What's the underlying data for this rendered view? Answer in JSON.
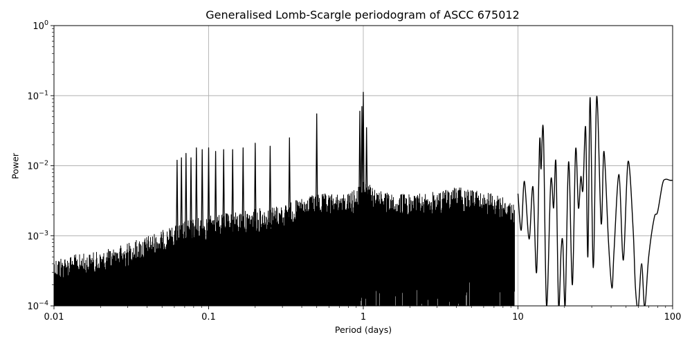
{
  "chart_data": {
    "type": "line",
    "title": "Generalised Lomb-Scargle periodogram of ASCC 675012",
    "xlabel": "Period (days)",
    "ylabel": "Power",
    "xscale": "log",
    "yscale": "log",
    "xlim": [
      0.01,
      100
    ],
    "ylim": [
      0.0001,
      1
    ],
    "grid": true,
    "legend": null,
    "xticks": [
      0.01,
      0.1,
      1,
      10,
      100
    ],
    "xtick_labels": [
      "0.01",
      "0.1",
      "1",
      "10",
      "100"
    ],
    "yticks": [
      0.0001,
      0.001,
      0.01,
      0.1,
      1
    ],
    "ytick_labels": [
      {
        "base": "10",
        "exp": "−4"
      },
      {
        "base": "10",
        "exp": "−3"
      },
      {
        "base": "10",
        "exp": "−2"
      },
      {
        "base": "10",
        "exp": "−1"
      },
      {
        "base": "10",
        "exp": "0"
      }
    ],
    "line_color": "#000000",
    "grid_color": "#b0b0b0",
    "noise_envelope": [
      {
        "period": 0.01,
        "power": 0.0005
      },
      {
        "period": 0.02,
        "power": 0.0006
      },
      {
        "period": 0.03,
        "power": 0.0008
      },
      {
        "period": 0.05,
        "power": 0.0012
      },
      {
        "period": 0.08,
        "power": 0.0018
      },
      {
        "period": 0.15,
        "power": 0.0022
      },
      {
        "period": 0.3,
        "power": 0.0028
      },
      {
        "period": 0.5,
        "power": 0.004
      },
      {
        "period": 0.8,
        "power": 0.004
      },
      {
        "period": 1.0,
        "power": 0.006
      },
      {
        "period": 1.5,
        "power": 0.004
      },
      {
        "period": 2.5,
        "power": 0.004
      },
      {
        "period": 4.0,
        "power": 0.005
      },
      {
        "period": 7.0,
        "power": 0.004
      },
      {
        "period": 9.5,
        "power": 0.003
      }
    ],
    "alias_peaks": [
      {
        "period": 0.0625,
        "power": 0.012
      },
      {
        "period": 0.0667,
        "power": 0.013
      },
      {
        "period": 0.0714,
        "power": 0.015
      },
      {
        "period": 0.0769,
        "power": 0.013
      },
      {
        "period": 0.0833,
        "power": 0.018
      },
      {
        "period": 0.0909,
        "power": 0.017
      },
      {
        "period": 0.1,
        "power": 0.018
      },
      {
        "period": 0.111,
        "power": 0.016
      },
      {
        "period": 0.125,
        "power": 0.017
      },
      {
        "period": 0.143,
        "power": 0.017
      },
      {
        "period": 0.167,
        "power": 0.018
      },
      {
        "period": 0.2,
        "power": 0.021
      },
      {
        "period": 0.25,
        "power": 0.019
      },
      {
        "period": 0.333,
        "power": 0.025
      },
      {
        "period": 0.5,
        "power": 0.055
      },
      {
        "period": 0.95,
        "power": 0.06
      },
      {
        "period": 0.98,
        "power": 0.07
      },
      {
        "period": 1.0,
        "power": 0.112
      },
      {
        "period": 1.05,
        "power": 0.035
      }
    ],
    "smooth_curve": [
      {
        "period": 10.0,
        "power": 0.004
      },
      {
        "period": 10.5,
        "power": 0.0012
      },
      {
        "period": 11.0,
        "power": 0.006
      },
      {
        "period": 11.8,
        "power": 0.0009
      },
      {
        "period": 12.5,
        "power": 0.005
      },
      {
        "period": 13.2,
        "power": 0.0003
      },
      {
        "period": 13.8,
        "power": 0.022
      },
      {
        "period": 14.1,
        "power": 0.009
      },
      {
        "period": 14.6,
        "power": 0.032
      },
      {
        "period": 15.3,
        "power": 0.0001
      },
      {
        "period": 16.3,
        "power": 0.006
      },
      {
        "period": 17.0,
        "power": 0.0025
      },
      {
        "period": 17.6,
        "power": 0.011
      },
      {
        "period": 18.3,
        "power": 0.0001
      },
      {
        "period": 19.0,
        "power": 0.0006
      },
      {
        "period": 19.5,
        "power": 0.0008
      },
      {
        "period": 20.2,
        "power": 0.0001
      },
      {
        "period": 21.0,
        "power": 0.006
      },
      {
        "period": 21.5,
        "power": 0.008
      },
      {
        "period": 22.5,
        "power": 0.0002
      },
      {
        "period": 23.6,
        "power": 0.017
      },
      {
        "period": 24.6,
        "power": 0.0025
      },
      {
        "period": 25.5,
        "power": 0.007
      },
      {
        "period": 26.3,
        "power": 0.0045
      },
      {
        "period": 27.4,
        "power": 0.035
      },
      {
        "period": 28.3,
        "power": 0.0005
      },
      {
        "period": 29.3,
        "power": 0.094
      },
      {
        "period": 30.7,
        "power": 0.00035
      },
      {
        "period": 32.3,
        "power": 0.097
      },
      {
        "period": 34.5,
        "power": 0.0015
      },
      {
        "period": 36.0,
        "power": 0.016
      },
      {
        "period": 38.5,
        "power": 0.0008
      },
      {
        "period": 40.5,
        "power": 0.00018
      },
      {
        "period": 41.8,
        "power": 0.0006
      },
      {
        "period": 45.0,
        "power": 0.0075
      },
      {
        "period": 48.0,
        "power": 0.00045
      },
      {
        "period": 51.5,
        "power": 0.0115
      },
      {
        "period": 55.5,
        "power": 0.0013
      },
      {
        "period": 57.5,
        "power": 0.00018
      },
      {
        "period": 60.0,
        "power": 5e-05
      },
      {
        "period": 63.0,
        "power": 0.0004
      },
      {
        "period": 66.0,
        "power": 5e-05
      },
      {
        "period": 70.0,
        "power": 0.0005
      },
      {
        "period": 76.0,
        "power": 0.0018
      },
      {
        "period": 80.0,
        "power": 0.0022
      },
      {
        "period": 86.0,
        "power": 0.0055
      },
      {
        "period": 90.0,
        "power": 0.0064
      },
      {
        "period": 96.0,
        "power": 0.0062
      },
      {
        "period": 100.0,
        "power": 0.0062
      }
    ]
  }
}
